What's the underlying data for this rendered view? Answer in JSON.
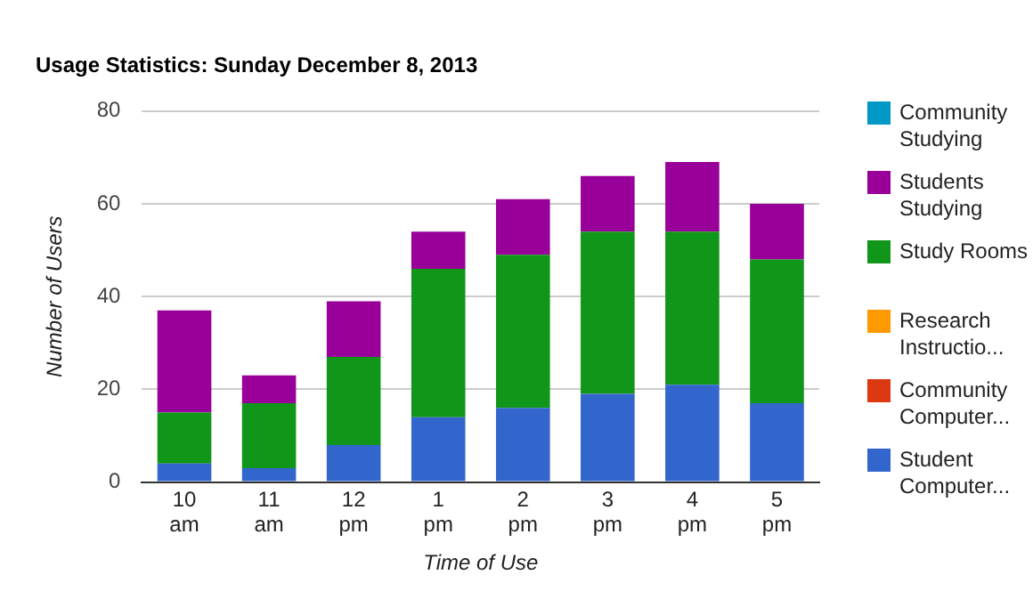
{
  "chart_data": {
    "type": "bar",
    "stacked": true,
    "title": "Usage Statistics: Sunday December 8, 2013",
    "xlabel": "Time of Use",
    "ylabel": "Number of Users",
    "categories": [
      "10 am",
      "11 am",
      "12 pm",
      "1 pm",
      "2 pm",
      "3 pm",
      "4 pm",
      "5 pm"
    ],
    "series": [
      {
        "name": "Student Computer...",
        "color": "#3366cc",
        "values": [
          4,
          3,
          8,
          14,
          16,
          19,
          21,
          17
        ]
      },
      {
        "name": "Community Computer...",
        "color": "#dc3912",
        "values": [
          0,
          0,
          0,
          0,
          0,
          0,
          0,
          0
        ]
      },
      {
        "name": "Research Instructio...",
        "color": "#ff9900",
        "values": [
          0,
          0,
          0,
          0,
          0,
          0,
          0,
          0
        ]
      },
      {
        "name": "Study Rooms",
        "color": "#109618",
        "values": [
          11,
          14,
          19,
          32,
          33,
          35,
          33,
          31
        ]
      },
      {
        "name": "Students Studying",
        "color": "#990099",
        "values": [
          22,
          6,
          12,
          8,
          12,
          12,
          15,
          12
        ]
      },
      {
        "name": "Community Studying",
        "color": "#0099c6",
        "values": [
          0,
          0,
          0,
          0,
          0,
          0,
          0,
          0
        ]
      }
    ],
    "ylim": [
      0,
      80
    ],
    "yticks": [
      0,
      20,
      40,
      60,
      80
    ],
    "grid": "y",
    "legend": "right"
  }
}
